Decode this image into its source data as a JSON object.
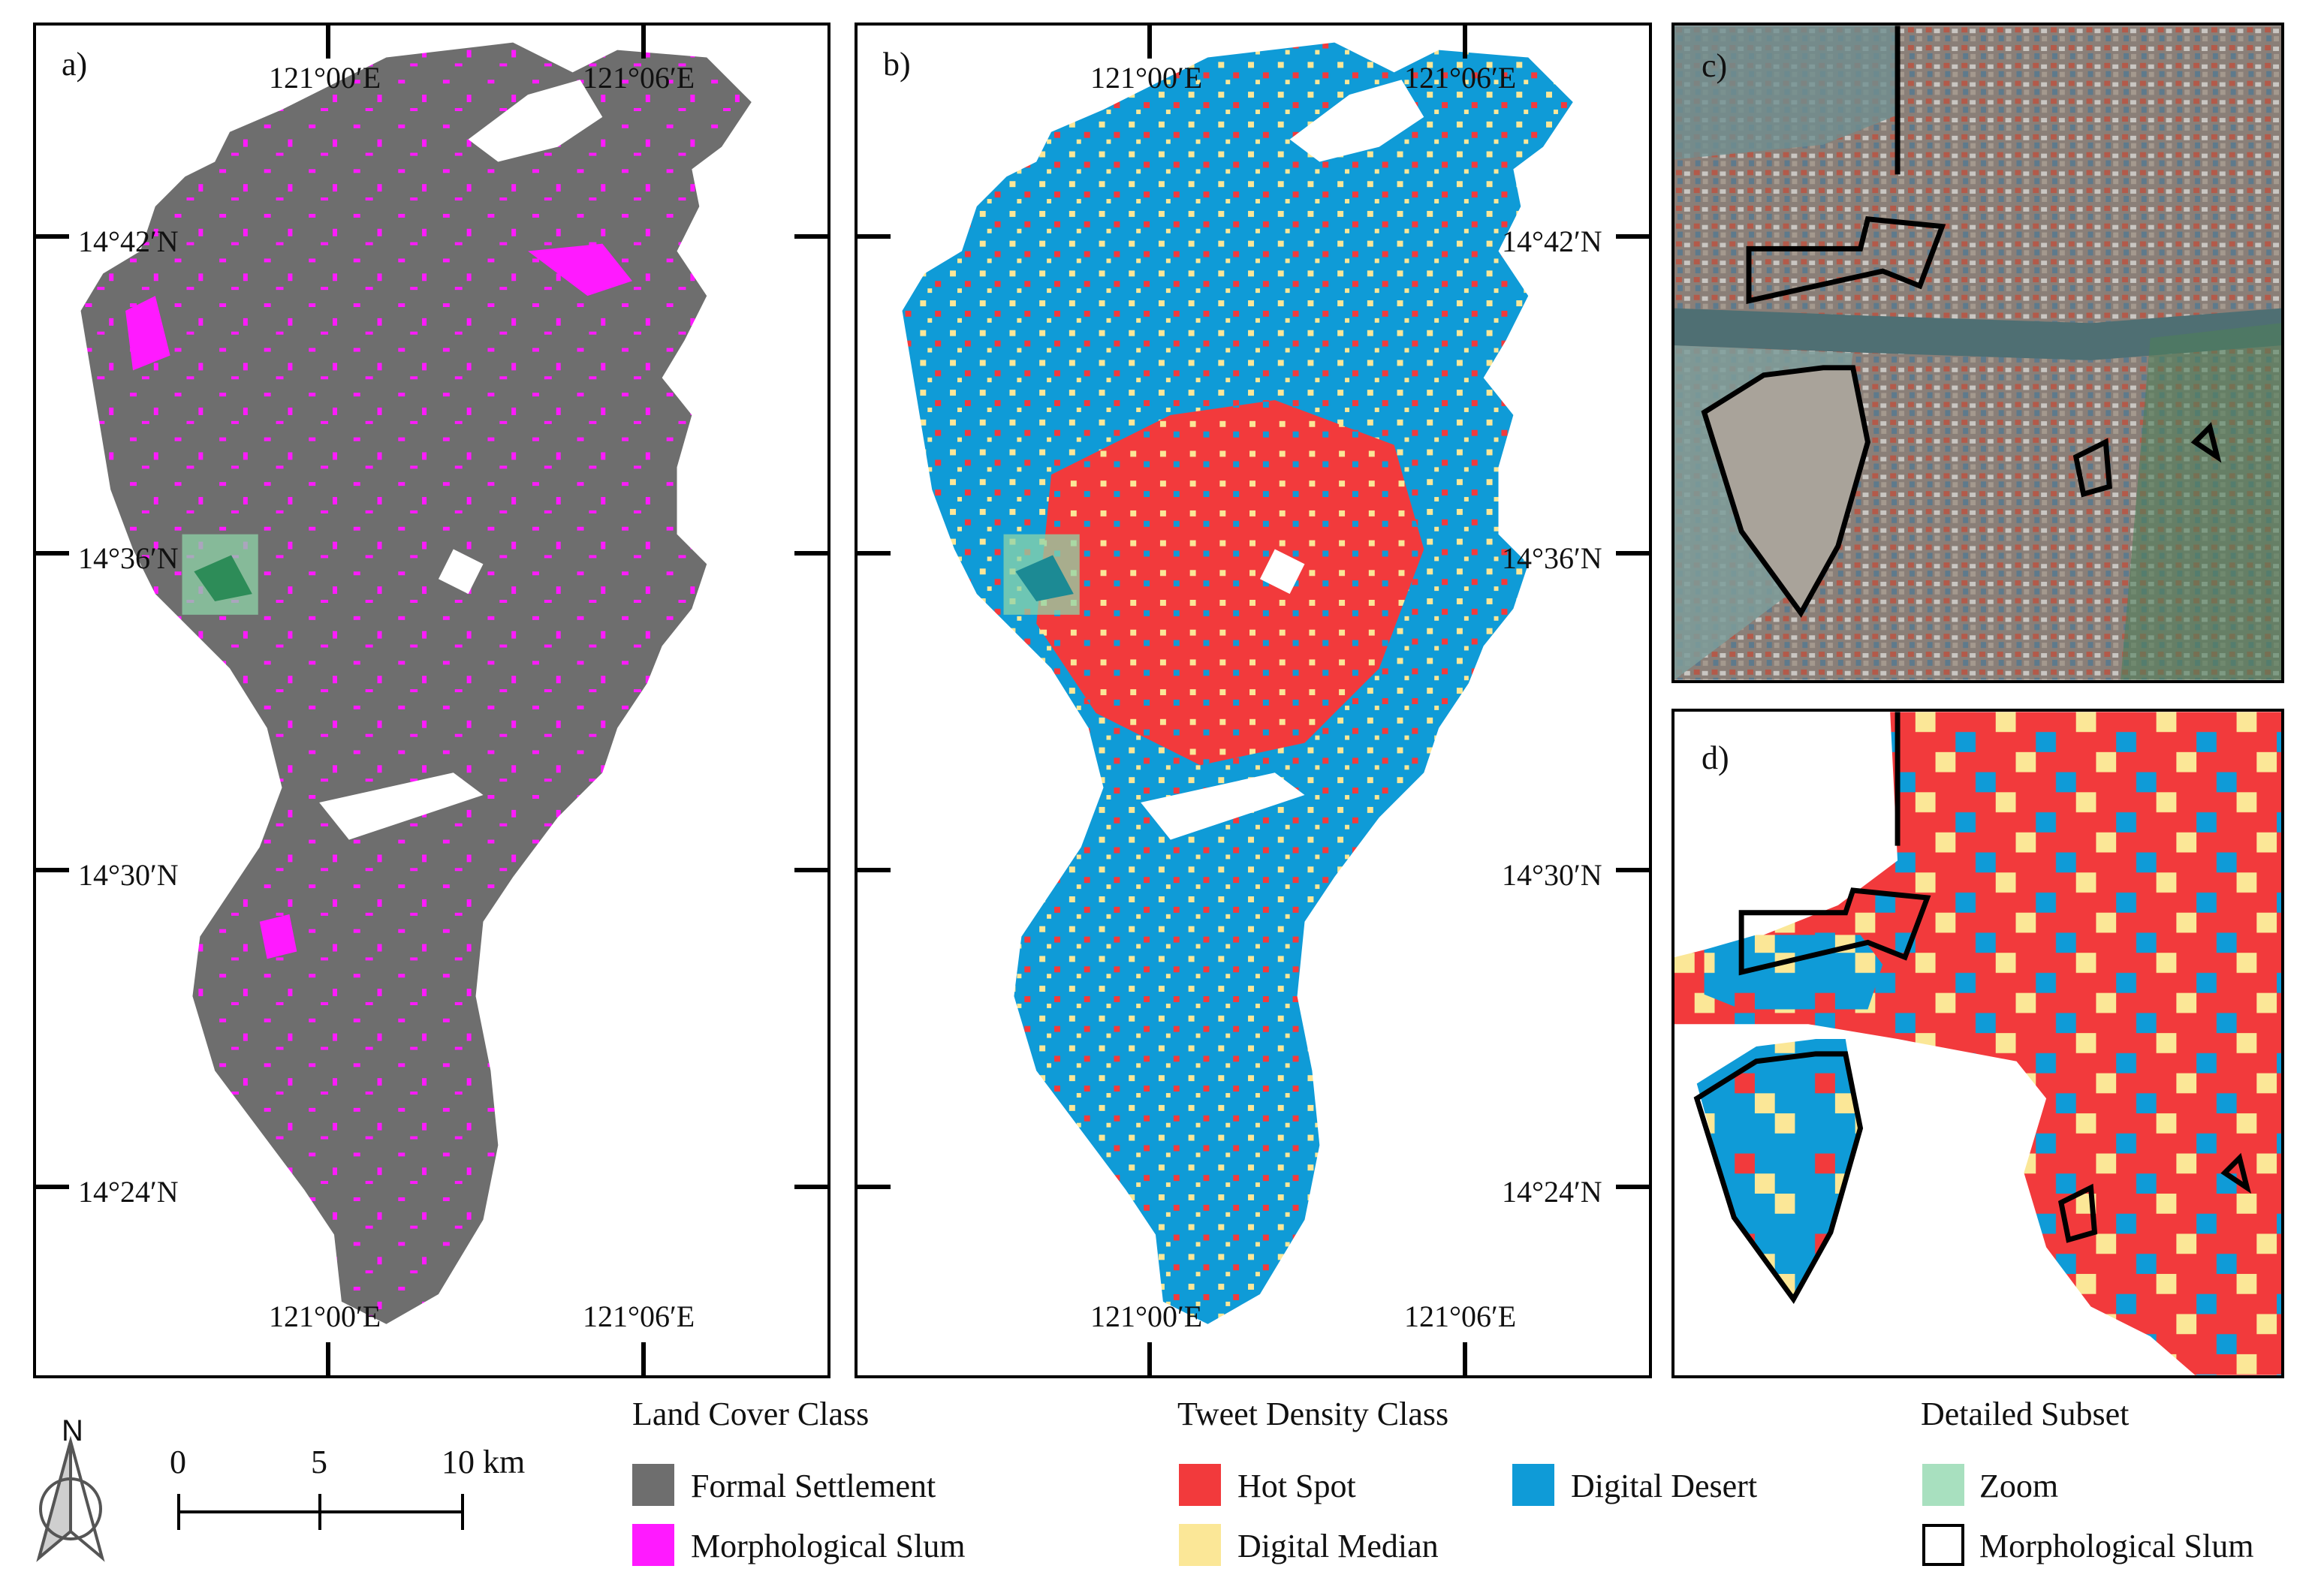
{
  "panels": {
    "a": {
      "letter": "a)",
      "lon_ticks_top": [
        "121°00′E",
        "121°06′E"
      ],
      "lon_ticks_bottom": [
        "121°00′E",
        "121°06′E"
      ],
      "lat_ticks": [
        "14°42′N",
        "14°36′N",
        "14°30′N",
        "14°24′N"
      ]
    },
    "b": {
      "letter": "b)",
      "lon_ticks_top": [
        "121°00′E",
        "121°06′E"
      ],
      "lon_ticks_bottom": [
        "121°00′E",
        "121°06′E"
      ],
      "lat_ticks": [
        "14°42′N",
        "14°36′N",
        "14°30′N",
        "14°24′N"
      ]
    },
    "c": {
      "letter": "c)"
    },
    "d": {
      "letter": "d)"
    }
  },
  "scale_bar": {
    "north": "N",
    "ticks": [
      "0",
      "5",
      "10 km"
    ]
  },
  "legend": {
    "land_cover": {
      "title": "Land Cover Class",
      "items": [
        {
          "label": "Formal Settlement",
          "color": "#6e6e6e"
        },
        {
          "label": "Morphological Slum",
          "color": "#ff1aff"
        }
      ]
    },
    "tweet_density": {
      "title": "Tweet Density Class",
      "items": [
        {
          "label": "Hot Spot",
          "color": "#f23a3c"
        },
        {
          "label": "Digital Median",
          "color": "#fbe797"
        },
        {
          "label": "Digital Desert",
          "color": "#0f9bd7"
        }
      ]
    },
    "detailed_subset": {
      "title": "Detailed Subset",
      "items": [
        {
          "label": "Zoom",
          "color": "#a8e0bf"
        },
        {
          "label": "Morphological Slum",
          "color": "#000000"
        }
      ]
    }
  }
}
